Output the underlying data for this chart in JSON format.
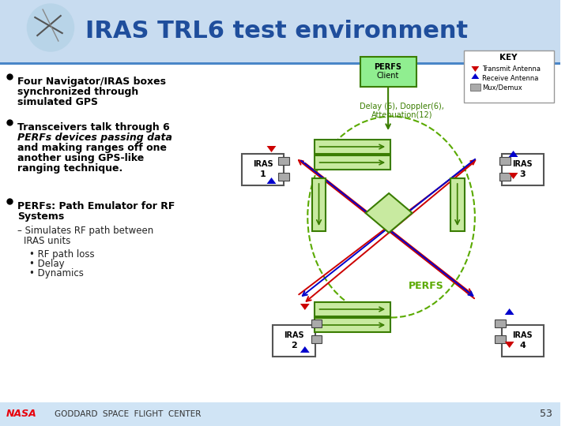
{
  "title": "IRAS TRL6 test environment",
  "title_color": "#1F4E9C",
  "bg_color": "#FFFFFF",
  "header_bg": "#C8DCF0",
  "footer_bg": "#D0E4F5",
  "bullet1_lines": [
    "Four Navigator/IRAS boxes",
    "synchronized through",
    "simulated GPS"
  ],
  "bullet2_line1": "Transceivers talk through 6",
  "bullet2_line2": "PERFs devices passing data",
  "bullet2_line3": "and making ranges off one",
  "bullet2_line4": "another using GPS-like",
  "bullet2_line5": "ranging technique.",
  "bullet3_line1": "PERFs: Path Emulator for RF",
  "bullet3_line2": "Systems",
  "sub_bullet": "Simulates RF path between",
  "sub_bullet2": "IRAS units",
  "sub_sub_bullets": [
    "RF path loss",
    "Delay",
    "Dynamics"
  ],
  "footer_text": "GODDARD  SPACE  FLIGHT  CENTER",
  "page_num": "53",
  "nasa_red": "#E8000B",
  "green_color": "#3A7D00",
  "dashed_green": "#5AAA00",
  "iras_border": "#555555",
  "perfs_client_fill": "#90EE90",
  "perfs_border": "#3A7D00",
  "key_border": "#999999",
  "red_arrow": "#CC0000",
  "blue_arrow": "#0000CC",
  "gray_box": "#AAAAAA",
  "green_box_fill": "#c8eaa0",
  "header_line": "#4A86C8"
}
